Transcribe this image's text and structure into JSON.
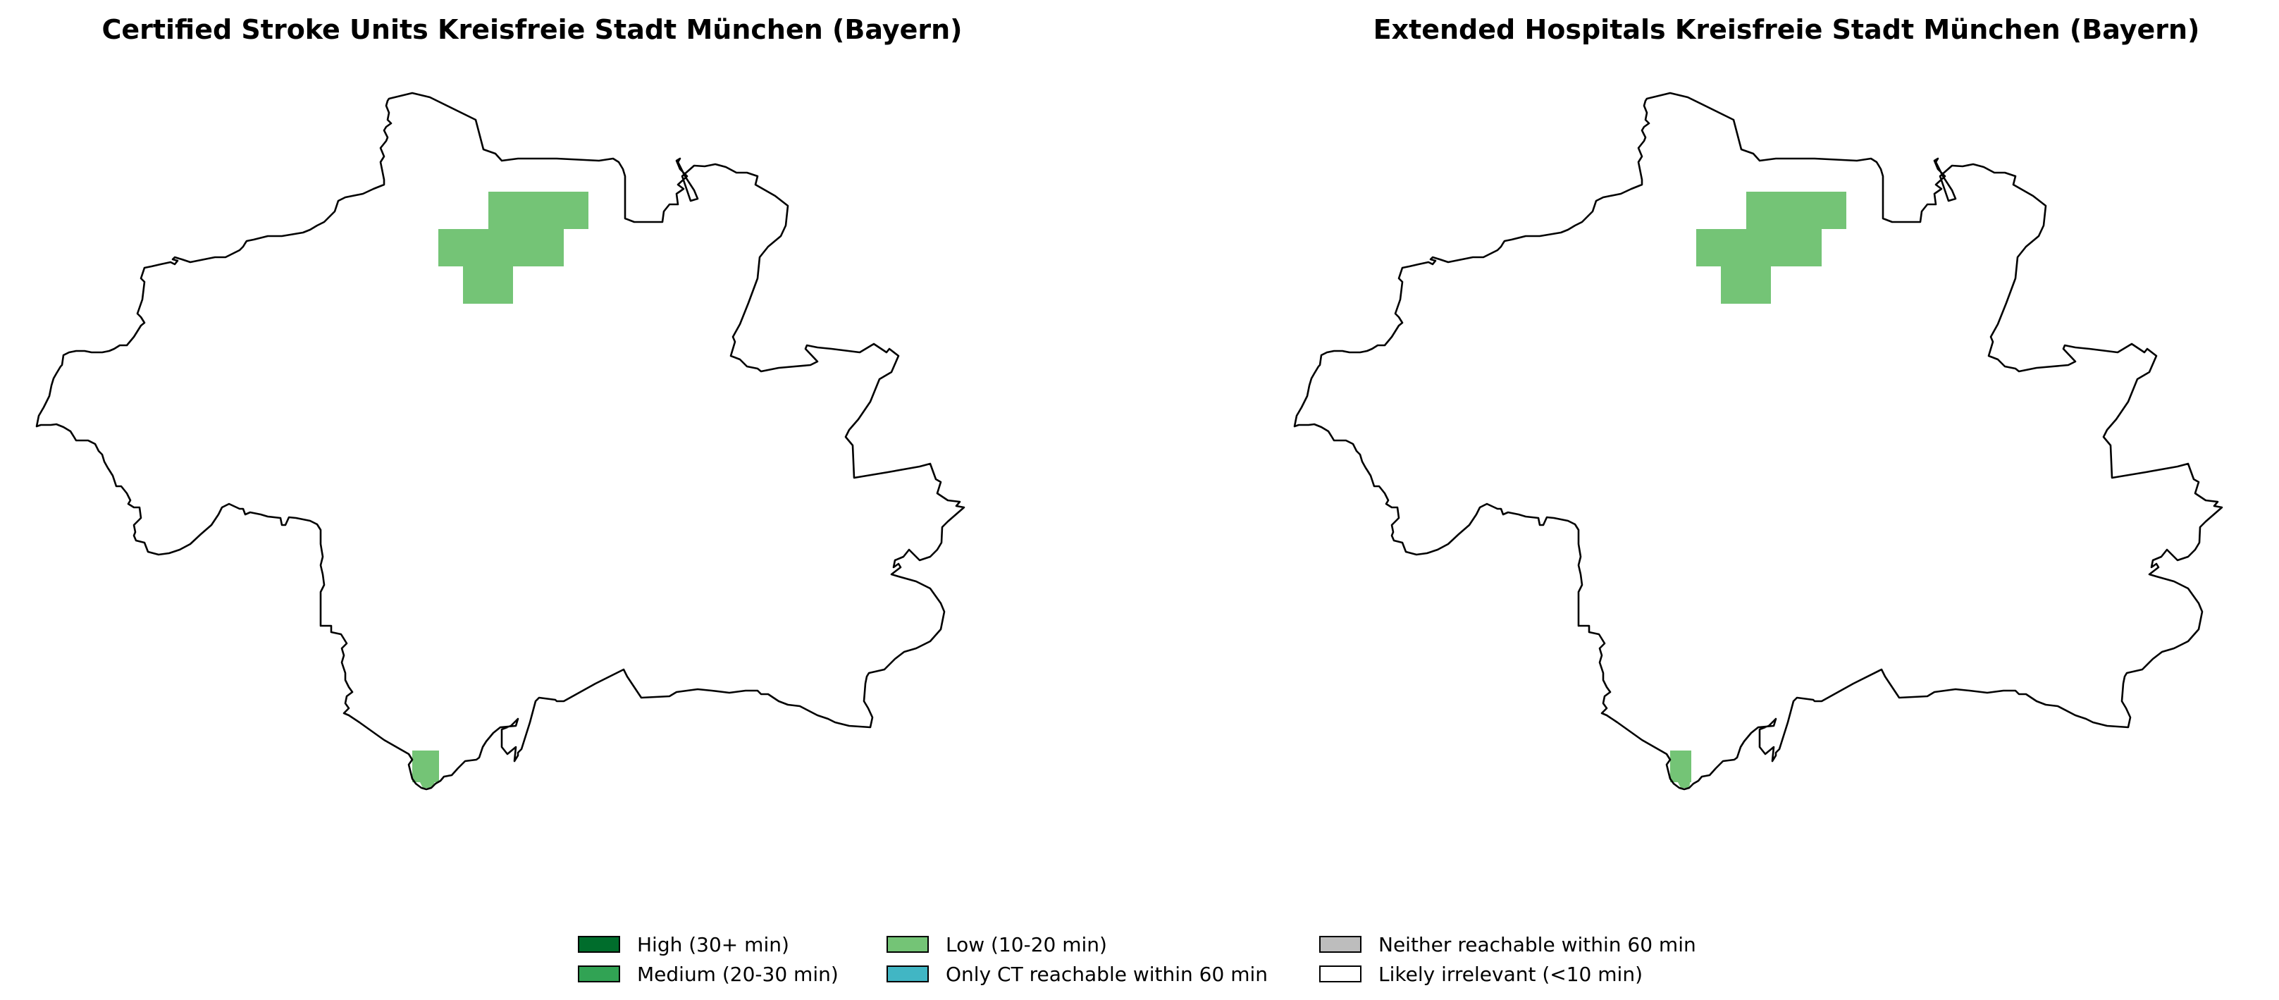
{
  "panels": [
    {
      "title": "Certified Stroke Units Kreisfreie Stadt München (Bayern)"
    },
    {
      "title": "Extended Hospitals Kreisfreie Stadt München (Bayern)"
    }
  ],
  "legend": {
    "items": [
      {
        "label": "High (30+ min)",
        "color": "#006d2c"
      },
      {
        "label": "Medium (20-30 min)",
        "color": "#31a354"
      },
      {
        "label": "Low (10-20 min)",
        "color": "#74c476"
      },
      {
        "label": "Only CT reachable within 60 min",
        "color": "#41b6c4"
      },
      {
        "label": "Neither reachable within 60 min",
        "color": "#bdbdbd"
      },
      {
        "label": "Likely irrelevant (<10 min)",
        "color": "#ffffff"
      }
    ]
  },
  "boundary_color": "#000000",
  "low_zone_color": "#74c476"
}
